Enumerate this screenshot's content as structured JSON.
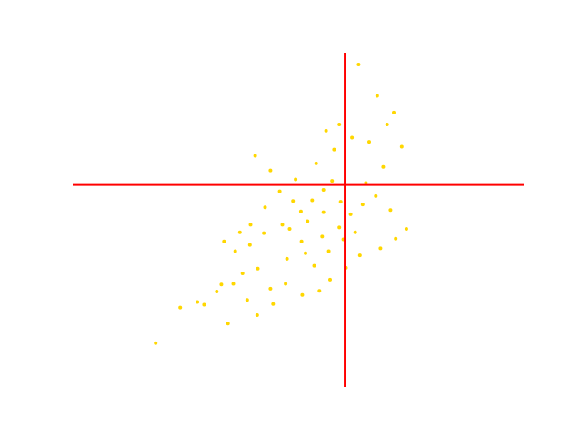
{
  "chart_data": {
    "type": "scatter",
    "title": "",
    "xlabel": "",
    "ylabel": "",
    "grid": false,
    "axes_visible": false,
    "xlim": [
      -3.6,
      3.2
    ],
    "ylim": [
      -2.4,
      2.4
    ],
    "point_color": "#ffd700",
    "line_color": "#ff0000",
    "reference_lines": {
      "vertical_x": 0.5,
      "horizontal_y": 0.5
    },
    "series": [
      {
        "points": [
          [
            -2.35,
            -1.77
          ],
          [
            -1.98,
            -1.26
          ],
          [
            -1.62,
            -1.22
          ],
          [
            -1.72,
            -1.18
          ],
          [
            -1.43,
            -1.03
          ],
          [
            -1.18,
            -0.92
          ],
          [
            -1.36,
            -0.93
          ],
          [
            -1.04,
            -0.77
          ],
          [
            -0.81,
            -0.7
          ],
          [
            -1.15,
            -0.45
          ],
          [
            -1.32,
            -0.31
          ],
          [
            -0.93,
            -0.36
          ],
          [
            -0.72,
            -0.19
          ],
          [
            -0.44,
            -0.07
          ],
          [
            -0.33,
            -0.13
          ],
          [
            -0.16,
            0.12
          ],
          [
            0.01,
            0.28
          ],
          [
            0.18,
            0.43
          ],
          [
            0.31,
            0.56
          ],
          [
            -0.24,
            0.58
          ],
          [
            -0.62,
            0.71
          ],
          [
            -0.85,
            0.92
          ],
          [
            0.07,
            0.81
          ],
          [
            0.34,
            1.01
          ],
          [
            0.22,
            1.28
          ],
          [
            0.42,
            1.37
          ],
          [
            0.61,
            1.18
          ],
          [
            0.87,
            1.12
          ],
          [
            1.14,
            1.37
          ],
          [
            1.24,
            1.54
          ],
          [
            0.99,
            1.78
          ],
          [
            0.71,
            2.23
          ],
          [
            1.36,
            1.05
          ],
          [
            1.08,
            0.76
          ],
          [
            0.82,
            0.53
          ],
          [
            0.97,
            0.34
          ],
          [
            1.19,
            0.14
          ],
          [
            1.43,
            -0.13
          ],
          [
            1.27,
            -0.27
          ],
          [
            1.04,
            -0.41
          ],
          [
            0.73,
            -0.51
          ],
          [
            0.52,
            -0.69
          ],
          [
            0.28,
            -0.86
          ],
          [
            0.12,
            -1.02
          ],
          [
            -0.14,
            -1.08
          ],
          [
            -0.39,
            -0.92
          ],
          [
            -0.62,
            -0.99
          ],
          [
            -0.97,
            -1.15
          ],
          [
            -1.26,
            -1.49
          ],
          [
            -0.82,
            -1.37
          ],
          [
            -0.58,
            -1.21
          ],
          [
            -0.37,
            -0.56
          ],
          [
            -0.09,
            -0.48
          ],
          [
            0.16,
            -0.24
          ],
          [
            0.42,
            -0.11
          ],
          [
            0.59,
            0.08
          ],
          [
            0.77,
            0.22
          ],
          [
            0.44,
            0.26
          ],
          [
            0.18,
            0.11
          ],
          [
            -0.06,
            -0.02
          ],
          [
            -0.28,
            0.27
          ],
          [
            -0.48,
            0.41
          ],
          [
            -0.7,
            0.18
          ],
          [
            -0.92,
            -0.07
          ],
          [
            -1.08,
            -0.18
          ],
          [
            -0.15,
            -0.31
          ],
          [
            0.04,
            -0.66
          ],
          [
            0.26,
            -0.45
          ],
          [
            0.48,
            -0.28
          ],
          [
            0.66,
            -0.18
          ]
        ]
      }
    ]
  }
}
